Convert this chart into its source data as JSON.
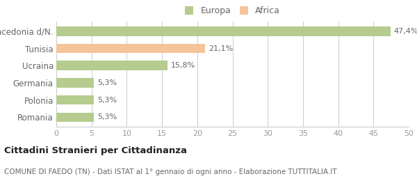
{
  "categories": [
    "Romania",
    "Polonia",
    "Germania",
    "Ucraina",
    "Tunisia",
    "Macedonia d/N."
  ],
  "values": [
    5.3,
    5.3,
    5.3,
    15.8,
    21.1,
    47.4
  ],
  "labels": [
    "5,3%",
    "5,3%",
    "5,3%",
    "15,8%",
    "21,1%",
    "47,4%"
  ],
  "colors": [
    "#b5cc8e",
    "#b5cc8e",
    "#b5cc8e",
    "#b5cc8e",
    "#f5c49a",
    "#b5cc8e"
  ],
  "legend_items": [
    {
      "label": "Europa",
      "color": "#b5cc8e"
    },
    {
      "label": "Africa",
      "color": "#f5c49a"
    }
  ],
  "xlim": [
    0,
    50
  ],
  "xticks": [
    0,
    5,
    10,
    15,
    20,
    25,
    30,
    35,
    40,
    45,
    50
  ],
  "title_bold": "Cittadini Stranieri per Cittadinanza",
  "subtitle": "COMUNE DI FAEDO (TN) - Dati ISTAT al 1° gennaio di ogni anno - Elaborazione TUTTITALIA.IT",
  "background_color": "#ffffff",
  "bar_height": 0.55,
  "label_color": "#666666",
  "tick_color": "#999999",
  "spine_color": "#cccccc",
  "ytick_fontsize": 8.5,
  "xtick_fontsize": 8,
  "label_fontsize": 8,
  "title_fontsize": 9.5,
  "subtitle_fontsize": 7.5
}
